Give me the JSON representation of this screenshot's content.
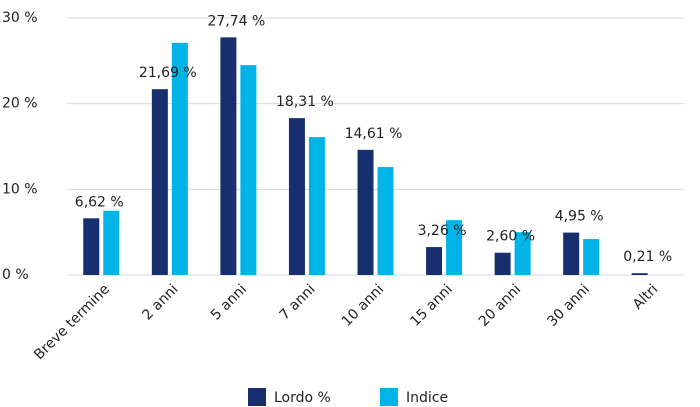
{
  "chart_data": {
    "type": "bar",
    "categories": [
      "Breve termine",
      "2 anni",
      "5 anni",
      "7 anni",
      "10 anni",
      "15 anni",
      "20 anni",
      "30 anni",
      "Altri"
    ],
    "series": [
      {
        "name": "Lordo %",
        "color": "#172f6e",
        "values": [
          6.62,
          21.69,
          27.74,
          18.31,
          14.61,
          3.26,
          2.6,
          4.95,
          0.21
        ],
        "value_labels": [
          "6,62 %",
          "21,69 %",
          "27,74 %",
          "18,31 %",
          "14,61 %",
          "3,26 %",
          "2,60 %",
          "4,95 %",
          "0,21 %"
        ]
      },
      {
        "name": "Indice",
        "color": "#00b4e8",
        "values": [
          7.5,
          27.1,
          24.5,
          16.1,
          12.6,
          6.4,
          5.0,
          4.2,
          0
        ]
      }
    ],
    "ylim": [
      0,
      30
    ],
    "yticks": [
      {
        "value": 0,
        "label": "0 %"
      },
      {
        "value": 10,
        "label": "10 %"
      },
      {
        "value": 20,
        "label": "20 %"
      },
      {
        "value": 30,
        "label": "30 %"
      }
    ],
    "grid": true
  }
}
